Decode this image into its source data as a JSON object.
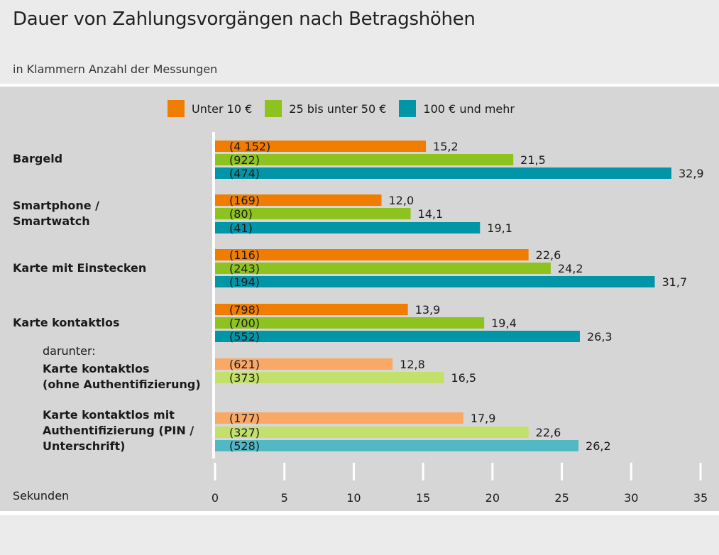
{
  "title": "Dauer von Zahlungsvorgängen nach Betragshöhen",
  "subtitle": "in Klammern Anzahl der Messungen",
  "darunter": "darunter:",
  "chart_data": {
    "type": "bar",
    "orientation": "horizontal",
    "xlabel": "Sekunden",
    "xlim": [
      0,
      35
    ],
    "xticks": [
      "0",
      "5",
      "10",
      "15",
      "20",
      "25",
      "30",
      "35"
    ],
    "legend": [
      {
        "name": "Unter 10 €",
        "color": "#f07c00"
      },
      {
        "name": "25 bis unter 50 €",
        "color": "#8dc21f"
      },
      {
        "name": "100 € und mehr",
        "color": "#0096a8"
      }
    ],
    "light_colors": {
      "orange": "#f9a866",
      "green": "#c2e06a",
      "teal": "#52b8c4"
    },
    "groups": [
      {
        "label_lines": [
          "Bargeld"
        ],
        "bars": [
          {
            "series": 0,
            "value": 15.2,
            "value_label": "15,2",
            "count": "(4 152)"
          },
          {
            "series": 1,
            "value": 21.5,
            "value_label": "21,5",
            "count": "(922)"
          },
          {
            "series": 2,
            "value": 32.9,
            "value_label": "32,9",
            "count": "(474)"
          }
        ]
      },
      {
        "label_lines": [
          "Smartphone /",
          "Smartwatch"
        ],
        "bars": [
          {
            "series": 0,
            "value": 12.0,
            "value_label": "12,0",
            "count": "(169)"
          },
          {
            "series": 1,
            "value": 14.1,
            "value_label": "14,1",
            "count": "(80)"
          },
          {
            "series": 2,
            "value": 19.1,
            "value_label": "19,1",
            "count": "(41)"
          }
        ]
      },
      {
        "label_lines": [
          "Karte mit Einstecken"
        ],
        "bars": [
          {
            "series": 0,
            "value": 22.6,
            "value_label": "22,6",
            "count": "(116)"
          },
          {
            "series": 1,
            "value": 24.2,
            "value_label": "24,2",
            "count": "(243)"
          },
          {
            "series": 2,
            "value": 31.7,
            "value_label": "31,7",
            "count": "(194)"
          }
        ]
      },
      {
        "label_lines": [
          "Karte kontaktlos"
        ],
        "bars": [
          {
            "series": 0,
            "value": 13.9,
            "value_label": "13,9",
            "count": "(798)"
          },
          {
            "series": 1,
            "value": 19.4,
            "value_label": "19,4",
            "count": "(700)"
          },
          {
            "series": 2,
            "value": 26.3,
            "value_label": "26,3",
            "count": "(552)"
          }
        ]
      },
      {
        "label_lines": [
          "Karte kontaktlos",
          "(ohne Authentifizierung)"
        ],
        "sub": true,
        "bars": [
          {
            "series": 0,
            "value": 12.8,
            "value_label": "12,8",
            "count": "(621)",
            "light": true
          },
          {
            "series": 1,
            "value": 16.5,
            "value_label": "16,5",
            "count": "(373)",
            "light": true
          }
        ]
      },
      {
        "label_lines": [
          "Karte kontaktlos mit",
          "Authentifizierung (PIN /",
          "Unterschrift)"
        ],
        "sub": true,
        "bars": [
          {
            "series": 0,
            "value": 17.9,
            "value_label": "17,9",
            "count": "(177)",
            "light": true
          },
          {
            "series": 1,
            "value": 22.6,
            "value_label": "22,6",
            "count": "(327)",
            "light": true
          },
          {
            "series": 2,
            "value": 26.2,
            "value_label": "26,2",
            "count": "(528)",
            "light": true
          }
        ]
      }
    ]
  }
}
